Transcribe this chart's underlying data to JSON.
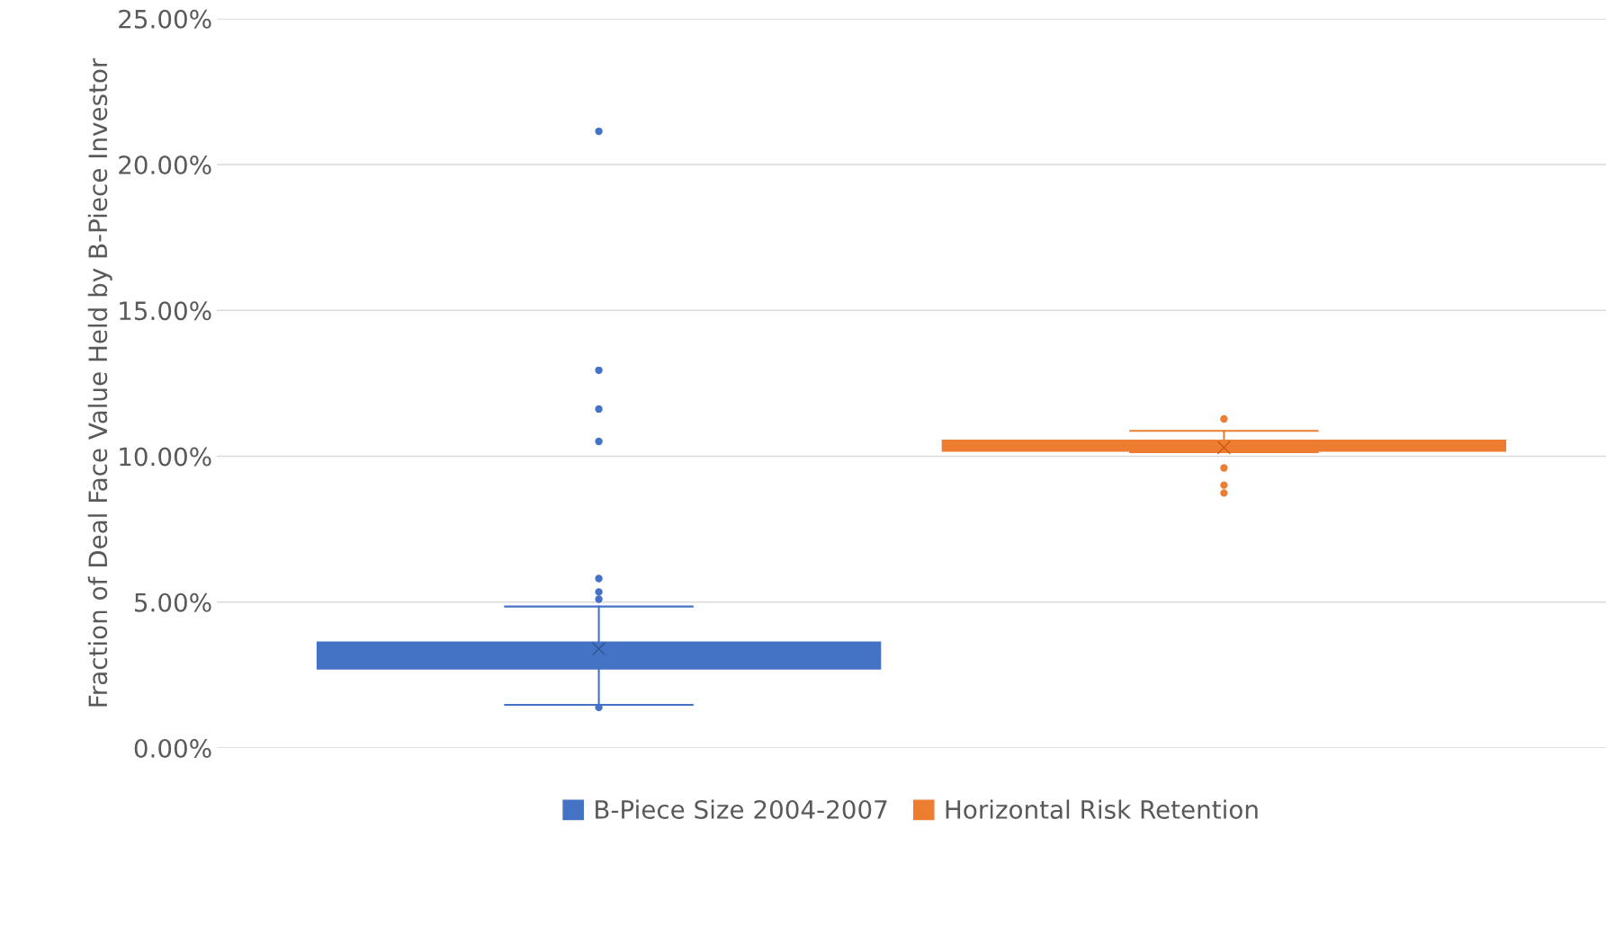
{
  "chart_data": {
    "type": "box",
    "ylabel": "Fraction of Deal Face Value Held by B-Piece Investor",
    "categories": [
      null
    ],
    "series": [
      {
        "name": "B-Piece Size 2004-2007",
        "color": "#4472c4",
        "boxes": [
          {
            "low": 1.48,
            "q1": 2.72,
            "median": 3.24,
            "q3": 3.62,
            "high": 4.85,
            "mean": 3.4,
            "outliers": [
              21.14,
              12.95,
              11.62,
              10.51,
              5.81,
              5.35,
              5.1,
              1.39
            ]
          }
        ]
      },
      {
        "name": "Horizontal Risk Retention",
        "color": "#ed7d31",
        "boxes": [
          {
            "low": 10.14,
            "q1": 10.19,
            "median": 10.34,
            "q3": 10.54,
            "high": 10.87,
            "mean": 10.3,
            "outliers": [
              11.28,
              9.6,
              9.01,
              8.74
            ]
          }
        ]
      }
    ],
    "ylim": [
      0,
      25
    ],
    "yticks": [
      {
        "value": 0,
        "label": "0.00%"
      },
      {
        "value": 5,
        "label": "5.00%"
      },
      {
        "value": 10,
        "label": "10.00%"
      },
      {
        "value": 15,
        "label": "15.00%"
      },
      {
        "value": 20,
        "label": "20.00%"
      },
      {
        "value": 25,
        "label": "25.00%"
      }
    ],
    "grid": "y",
    "legend": "bottom"
  }
}
